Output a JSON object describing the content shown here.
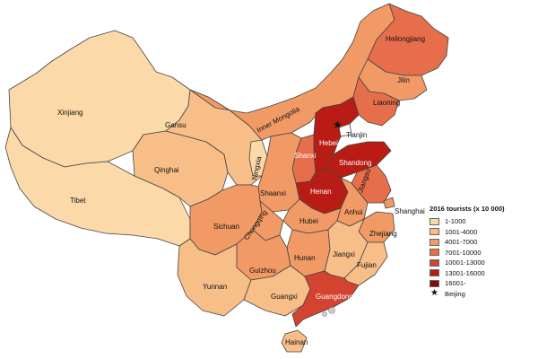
{
  "legend": {
    "title": "2016 tourists (x 10 000)",
    "items": [
      {
        "label": "1-1000",
        "color": "#fbd9a8"
      },
      {
        "label": "1001-4000",
        "color": "#f8be87"
      },
      {
        "label": "4001-7000",
        "color": "#f29a65"
      },
      {
        "label": "7001-10000",
        "color": "#e76e4a"
      },
      {
        "label": "10001-13000",
        "color": "#d4432f"
      },
      {
        "label": "13001-16000",
        "color": "#b91c15"
      },
      {
        "label": "16001-",
        "color": "#7f0f0e"
      }
    ],
    "beijing_marker": "★",
    "beijing_label": "Beijing"
  },
  "provinces": [
    {
      "id": "xinjiang",
      "name": "Xinjiang",
      "color": "#fbd9a8"
    },
    {
      "id": "tibet",
      "name": "Tibet",
      "color": "#fbd9a8"
    },
    {
      "id": "qinghai",
      "name": "Qinghai",
      "color": "#f8be87"
    },
    {
      "id": "gansu",
      "name": "Gansu",
      "color": "#f8be87"
    },
    {
      "id": "inner-mongolia",
      "name": "Inner Mongolia",
      "color": "#f29a65"
    },
    {
      "id": "heilongjiang",
      "name": "Heilongjiang",
      "color": "#e76e4a"
    },
    {
      "id": "jilin",
      "name": "Jilin",
      "color": "#f29a65"
    },
    {
      "id": "liaoning",
      "name": "Liaoning",
      "color": "#e76e4a"
    },
    {
      "id": "hebei",
      "name": "Hebei",
      "color": "#b91c15"
    },
    {
      "id": "tianjin",
      "name": "Tianjin",
      "color": "#ffffff"
    },
    {
      "id": "shanxi",
      "name": "Shanxi",
      "color": "#e76e4a"
    },
    {
      "id": "shandong",
      "name": "Shandong",
      "color": "#b91c15"
    },
    {
      "id": "henan",
      "name": "Henan",
      "color": "#b91c15"
    },
    {
      "id": "ningxia",
      "name": "Ningxia",
      "color": "#fbd9a8"
    },
    {
      "id": "shaanxi",
      "name": "Shaanxi",
      "color": "#f29a65"
    },
    {
      "id": "jiangsu",
      "name": "Jiangsu",
      "color": "#e76e4a"
    },
    {
      "id": "shanghai",
      "name": "Shanghai",
      "color": "#f29a65"
    },
    {
      "id": "anhui",
      "name": "Anhui",
      "color": "#f29a65"
    },
    {
      "id": "hubei",
      "name": "Hubei",
      "color": "#f29a65"
    },
    {
      "id": "sichuan",
      "name": "Sichuan",
      "color": "#f29a65"
    },
    {
      "id": "chongqing",
      "name": "Chongqing",
      "color": "#f29a65"
    },
    {
      "id": "zhejiang",
      "name": "Zhejiang",
      "color": "#f29a65"
    },
    {
      "id": "hunan",
      "name": "Hunan",
      "color": "#f29a65"
    },
    {
      "id": "jiangxi",
      "name": "Jiangxi",
      "color": "#f8be87"
    },
    {
      "id": "fujian",
      "name": "Fujian",
      "color": "#f8be87"
    },
    {
      "id": "guizhou",
      "name": "Guizhou",
      "color": "#f29a65"
    },
    {
      "id": "yunnan",
      "name": "Yunnan",
      "color": "#f8be87"
    },
    {
      "id": "guangxi",
      "name": "Guangxi",
      "color": "#f8be87"
    },
    {
      "id": "guangdong",
      "name": "Guangdong",
      "color": "#d4432f"
    },
    {
      "id": "hainan",
      "name": "Hainan",
      "color": "#f8be87"
    }
  ],
  "beijing_map_marker": "★",
  "dots_color": "#cccccc"
}
